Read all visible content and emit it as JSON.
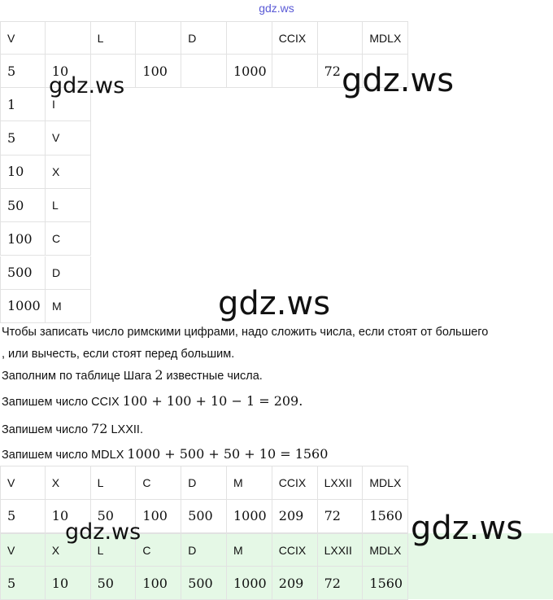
{
  "header": {
    "watermark": "gdz.ws"
  },
  "tables": [
    {
      "rows": [
        [
          "V",
          null,
          "L",
          null,
          "D",
          null,
          "CCIX",
          null,
          "MDLX"
        ],
        [
          5,
          10,
          null,
          100,
          null,
          1000,
          null,
          72,
          null
        ]
      ]
    },
    {
      "rows": [
        [
          1,
          "I"
        ],
        [
          5,
          "V"
        ],
        [
          10,
          "X"
        ],
        [
          50,
          "L"
        ],
        [
          100,
          "C"
        ],
        [
          500,
          "D"
        ],
        [
          1000,
          "M"
        ]
      ]
    },
    {
      "rows": [
        [
          "V",
          "X",
          "L",
          "C",
          "D",
          "M",
          "CCIX",
          "LXXII",
          "MDLX"
        ],
        [
          5,
          10,
          50,
          100,
          500,
          1000,
          209,
          72,
          1560
        ]
      ]
    },
    {
      "rows": [
        [
          "V",
          "X",
          "L",
          "C",
          "D",
          "M",
          "CCIX",
          "LXXII",
          "MDLX"
        ],
        [
          5,
          10,
          50,
          100,
          500,
          1000,
          209,
          72,
          1560
        ]
      ]
    }
  ],
  "paragraphs": [
    [
      "Чтобы записать число римскими цифрами, надо сложить числа, если стоят от большего"
    ],
    [
      ", или вычесть, если стоят перед большим."
    ],
    [
      "Заполним по таблице Шага ",
      "2",
      " известные числа."
    ],
    [
      "Запишем число CCIX ",
      "100 + 100 + 10 − 1 = 209."
    ],
    [
      "Запишем число ",
      "72",
      " LXXII."
    ],
    [
      "Запишем число MDLX ",
      "1000 + 500 + 50 + 10 = 1560"
    ]
  ],
  "watermarks": [
    "gdz.ws",
    "gdz.ws",
    "gdz.ws",
    "gdz.ws",
    "gdz.ws"
  ]
}
